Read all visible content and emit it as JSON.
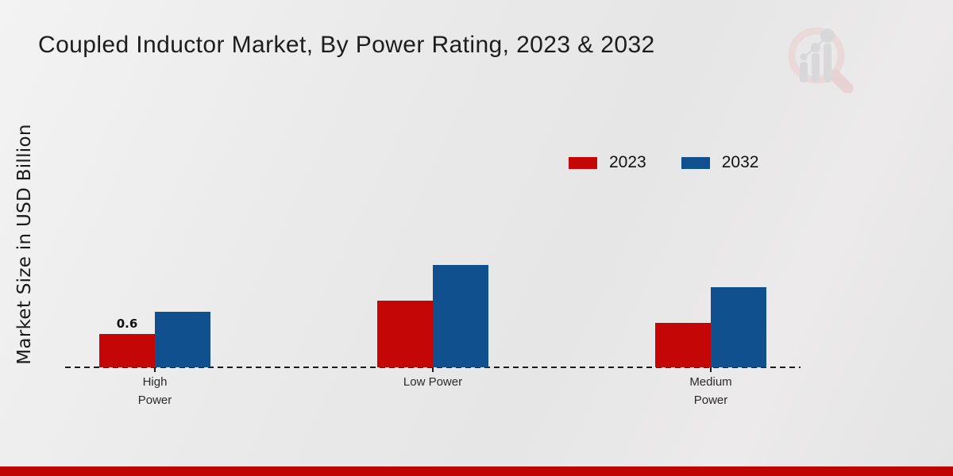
{
  "header": {
    "title": "Coupled Inductor Market, By Power Rating, 2023 & 2032",
    "logo_icon": "magnifier-bar-chart-logo"
  },
  "footer": {
    "bar_color": "#c00404"
  },
  "colors": {
    "series_2023_red": "#c40606",
    "series_2032_blue": "#11508f",
    "baseline": "#1a1a1a",
    "background": "#eaeaea"
  },
  "chart_data": {
    "type": "bar",
    "title": "Coupled Inductor Market, By Power Rating, 2023 & 2032",
    "xlabel": "",
    "ylabel": "Market Size in USD Billion",
    "categories": [
      "High\nPower",
      "Low Power",
      "Medium\nPower"
    ],
    "series": [
      {
        "name": "2023",
        "color": "#c40606",
        "values": [
          0.6,
          1.2,
          0.8
        ],
        "value_labels": [
          "0.6",
          "",
          ""
        ]
      },
      {
        "name": "2032",
        "color": "#11508f",
        "values": [
          1.0,
          1.85,
          1.45
        ],
        "value_labels": [
          "",
          "",
          ""
        ]
      }
    ],
    "ylim": [
      0,
      2
    ],
    "grid": false,
    "y_axis_ticks_visible": false,
    "legend_position": "top-right",
    "baseline_style": "dashed"
  }
}
